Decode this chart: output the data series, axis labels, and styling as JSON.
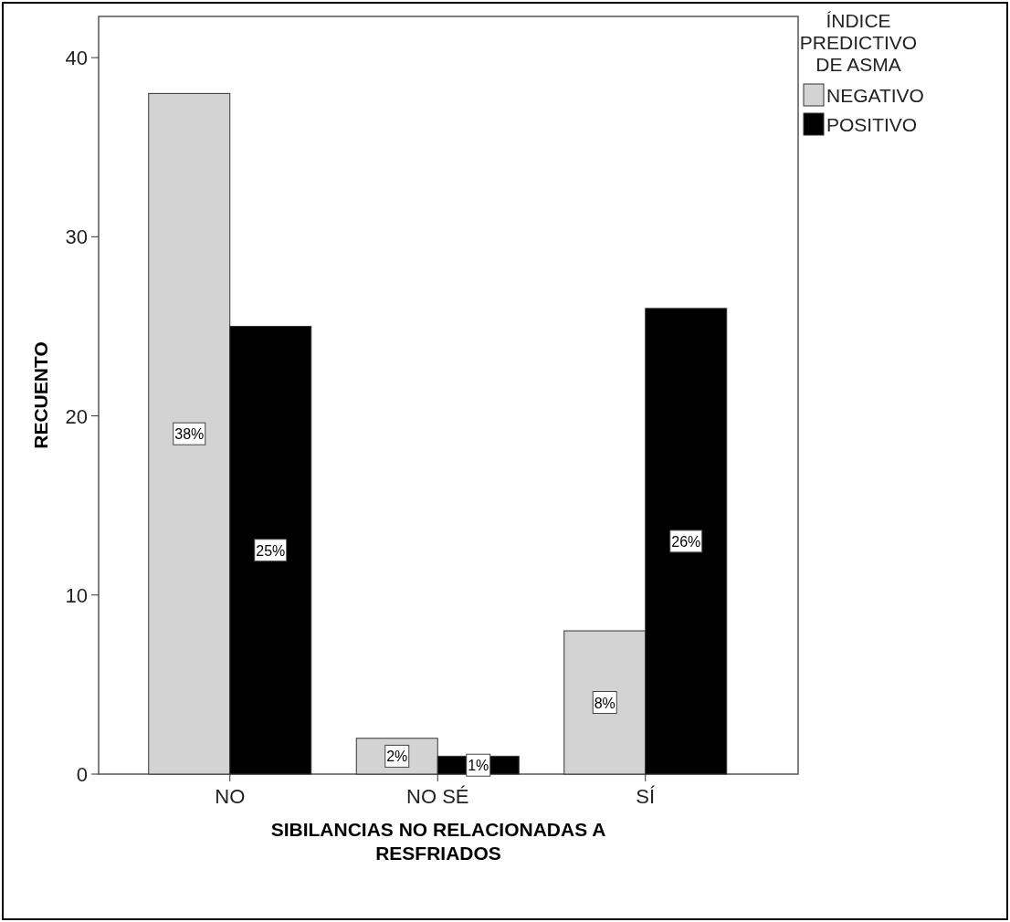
{
  "chart_data": {
    "type": "bar",
    "xlabel": "SIBILANCIAS NO RELACIONADAS A RESFRIADOS",
    "ylabel": "RECUENTO",
    "legend_title": "ÍNDICE PREDICTIVO DE ASMA",
    "categories": [
      "NO",
      "NO SÉ",
      "SÍ"
    ],
    "series": [
      {
        "name": "NEGATIVO",
        "color": "#d3d3d3",
        "values": [
          38,
          2,
          8
        ],
        "value_labels": [
          "38%",
          "2%",
          "8%"
        ]
      },
      {
        "name": "POSITIVO",
        "color": "#000000",
        "values": [
          25,
          1,
          26
        ],
        "value_labels": [
          "25%",
          "1%",
          "26%"
        ]
      }
    ],
    "ylim": [
      0,
      42.3
    ],
    "yticks": [
      0,
      10,
      20,
      30,
      40
    ],
    "grid": false,
    "legend": "right"
  }
}
